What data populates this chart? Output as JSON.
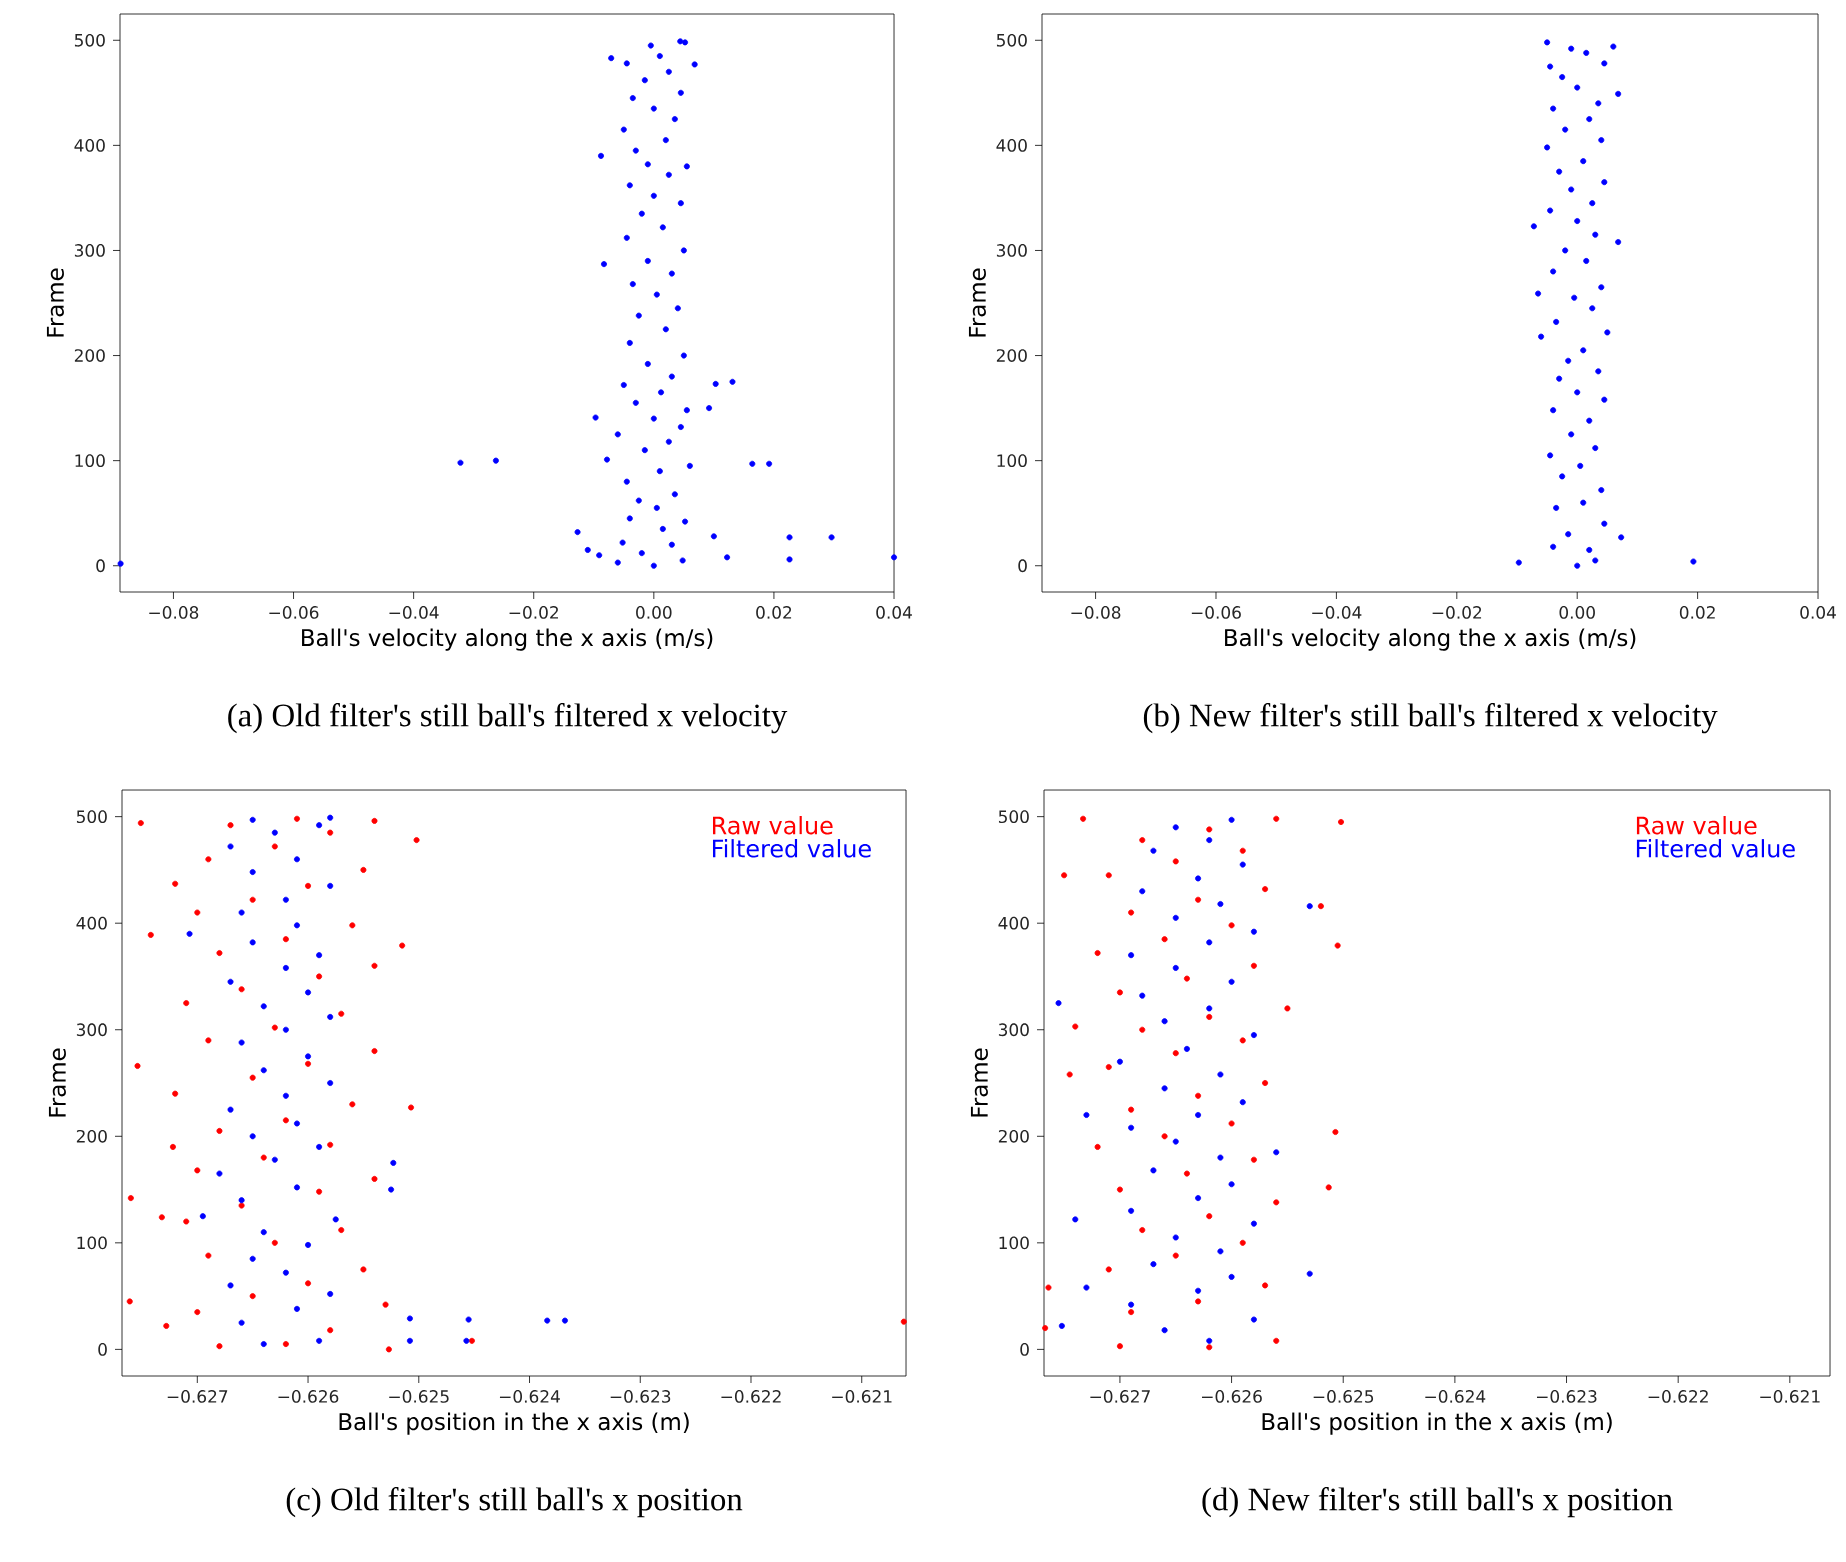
{
  "chart_data": [
    {
      "type": "scatter",
      "xlabel": "Ball's velocity along the x axis (m/s)",
      "ylabel": "Frame",
      "annotations": [
        "(a) Old filter's still ball's filtered x velocity"
      ],
      "marker": "circle",
      "xlim": [
        -0.0889,
        0.04
      ],
      "ylim": [
        -25,
        525
      ],
      "xticks": [
        {
          "value": -0.08,
          "label": "−0.08"
        },
        {
          "value": -0.06,
          "label": "−0.06"
        },
        {
          "value": -0.04,
          "label": "−0.04"
        },
        {
          "value": -0.02,
          "label": "−0.02"
        },
        {
          "value": 0,
          "label": "0.00"
        },
        {
          "value": 0.02,
          "label": "0.02"
        },
        {
          "value": 0.04,
          "label": "0.04"
        }
      ],
      "yticks": [
        0,
        100,
        200,
        300,
        400,
        500
      ],
      "series": [
        {
          "color": "#0000ff",
          "x": [
            -0.0888,
            -0.0322,
            -0.0263,
            0.0164,
            0.0192,
            0.04,
            0.0122,
            0.0226,
            0.0226,
            0.0296,
            0.01,
            0.0131,
            0.0103,
            0.0092,
            -0.0127,
            -0.011,
            -0.0091,
            -0.0088,
            -0.0083,
            -0.0071,
            0.0068,
            0.0044,
            -0.0097,
            -0.0078,
            0.0,
            -0.006,
            0.0048,
            -0.002,
            0.003,
            -0.0052,
            0.0015,
            -0.004,
            0.0052,
            0.0005,
            -0.0025,
            0.0035,
            -0.0045,
            0.001,
            0.006,
            -0.0015,
            0.0025,
            -0.006,
            0.0045,
            0.0,
            -0.003,
            0.0055,
            0.0012,
            -0.005,
            0.003,
            -0.001,
            0.005,
            -0.004,
            0.002,
            -0.0025,
            0.004,
            0.0005,
            -0.0035,
            0.003,
            -0.001,
            0.005,
            -0.0045,
            0.0015,
            -0.002,
            0.0045,
            0.0,
            -0.004,
            0.0025,
            -0.001,
            0.0055,
            -0.003,
            0.002,
            -0.005,
            0.0035,
            0.0,
            -0.0035,
            0.0045,
            -0.0015,
            0.0025,
            -0.0045,
            0.001,
            -0.0005,
            0.0052
          ],
          "values": [
            2,
            98,
            100,
            97,
            97,
            8,
            8,
            6,
            27,
            27,
            28,
            175,
            173,
            150,
            32,
            15,
            10,
            390,
            287,
            483,
            477,
            499,
            141,
            101,
            0,
            3,
            5,
            12,
            20,
            22,
            35,
            45,
            42,
            55,
            62,
            68,
            80,
            90,
            95,
            110,
            118,
            125,
            132,
            140,
            155,
            148,
            165,
            172,
            180,
            192,
            200,
            212,
            225,
            238,
            245,
            258,
            268,
            278,
            290,
            300,
            312,
            322,
            335,
            345,
            352,
            362,
            372,
            382,
            380,
            395,
            405,
            415,
            425,
            435,
            445,
            450,
            462,
            470,
            478,
            485,
            495,
            498
          ]
        }
      ]
    },
    {
      "type": "scatter",
      "xlabel": "Ball's velocity along the x axis (m/s)",
      "ylabel": "Frame",
      "annotations": [
        "(b) New filter's still ball's filtered x velocity"
      ],
      "marker": "circle",
      "xlim": [
        -0.0889,
        0.04
      ],
      "ylim": [
        -25,
        525
      ],
      "xticks": [
        {
          "value": -0.08,
          "label": "−0.08"
        },
        {
          "value": -0.06,
          "label": "−0.06"
        },
        {
          "value": -0.04,
          "label": "−0.04"
        },
        {
          "value": -0.02,
          "label": "−0.02"
        },
        {
          "value": 0,
          "label": "0.00"
        },
        {
          "value": 0.02,
          "label": "0.02"
        },
        {
          "value": 0.04,
          "label": "0.04"
        }
      ],
      "yticks": [
        0,
        100,
        200,
        300,
        400,
        500
      ],
      "series": [
        {
          "color": "#0000ff",
          "x": [
            -0.0097,
            0.0193,
            0.0073,
            0.0068,
            -0.0072,
            -0.0065,
            0.0068,
            -0.005,
            -0.006,
            0.0,
            0.003,
            -0.004,
            0.002,
            -0.0015,
            0.0045,
            -0.0035,
            0.001,
            0.004,
            -0.0025,
            0.0005,
            -0.0045,
            0.003,
            -0.001,
            0.002,
            -0.004,
            0.0045,
            0.0,
            -0.003,
            0.0035,
            -0.0015,
            0.001,
            0.005,
            -0.0035,
            0.0025,
            -0.0005,
            0.004,
            -0.004,
            0.0015,
            -0.002,
            0.003,
            0.0,
            -0.0045,
            0.0025,
            -0.001,
            0.0045,
            -0.003,
            0.001,
            -0.005,
            0.004,
            -0.002,
            0.002,
            -0.004,
            0.0035,
            0.0,
            -0.0025,
            0.0045,
            -0.0045,
            0.0015,
            -0.001,
            0.006
          ],
          "values": [
            3,
            4,
            27,
            449,
            323,
            259,
            308,
            498,
            218,
            0,
            5,
            18,
            15,
            30,
            40,
            55,
            60,
            72,
            85,
            95,
            105,
            112,
            125,
            138,
            148,
            158,
            165,
            178,
            185,
            195,
            205,
            222,
            232,
            245,
            255,
            265,
            280,
            290,
            300,
            315,
            328,
            338,
            345,
            358,
            365,
            375,
            385,
            398,
            405,
            415,
            425,
            435,
            440,
            455,
            465,
            478,
            475,
            488,
            492,
            494
          ]
        }
      ]
    },
    {
      "type": "scatter",
      "xlabel": "Ball's position in the x axis (m)",
      "ylabel": "Frame",
      "annotations": [
        "(c) Old filter's still ball's x position"
      ],
      "marker": "circle",
      "legend": "top right",
      "xlim": [
        -0.62768,
        -0.6206
      ],
      "ylim": [
        -25,
        525
      ],
      "xticks": [
        {
          "value": -0.627,
          "label": "−0.627"
        },
        {
          "value": -0.626,
          "label": "−0.626"
        },
        {
          "value": -0.625,
          "label": "−0.625"
        },
        {
          "value": -0.624,
          "label": "−0.624"
        },
        {
          "value": -0.623,
          "label": "−0.623"
        },
        {
          "value": -0.622,
          "label": "−0.622"
        },
        {
          "value": -0.621,
          "label": "−0.621"
        }
      ],
      "yticks": [
        0,
        100,
        200,
        300,
        400,
        500
      ],
      "series": [
        {
          "name": "Raw value",
          "color": "#ff0000",
          "x": [
            -0.62761,
            -0.62754,
            -0.62751,
            -0.6276,
            -0.62062,
            -0.62452,
            -0.62527,
            -0.62502,
            -0.62515,
            -0.62507,
            -0.6253,
            -0.62742,
            -0.62728,
            -0.62732,
            -0.62722,
            -0.6272,
            -0.6268,
            -0.6262,
            -0.6258,
            -0.627,
            -0.6265,
            -0.626,
            -0.6255,
            -0.6269,
            -0.6263,
            -0.6257,
            -0.6271,
            -0.6266,
            -0.6259,
            -0.6254,
            -0.627,
            -0.6264,
            -0.6258,
            -0.6268,
            -0.6262,
            -0.6256,
            -0.6272,
            -0.6265,
            -0.626,
            -0.6254,
            -0.6269,
            -0.6263,
            -0.6257,
            -0.6271,
            -0.6266,
            -0.6259,
            -0.6254,
            -0.6268,
            -0.6262,
            -0.6256,
            -0.627,
            -0.6265,
            -0.626,
            -0.6255,
            -0.6269,
            -0.6263,
            -0.6258,
            -0.6267,
            -0.6261,
            -0.6254
          ],
          "values": [
            45,
            266,
            494,
            142,
            26,
            8,
            0,
            478,
            379,
            227,
            42,
            389,
            22,
            124,
            190,
            437,
            3,
            5,
            18,
            35,
            50,
            62,
            75,
            88,
            100,
            112,
            120,
            135,
            148,
            160,
            168,
            180,
            192,
            205,
            215,
            230,
            240,
            255,
            268,
            280,
            290,
            302,
            315,
            325,
            338,
            350,
            360,
            372,
            385,
            398,
            410,
            422,
            435,
            450,
            460,
            472,
            485,
            492,
            498,
            496
          ]
        },
        {
          "name": "Filtered value",
          "color": "#0000ff",
          "x": [
            -0.62455,
            -0.62384,
            -0.62368,
            -0.62457,
            -0.62508,
            -0.62508,
            -0.62523,
            -0.62707,
            -0.62525,
            -0.62695,
            -0.6264,
            -0.6259,
            -0.6266,
            -0.6261,
            -0.6258,
            -0.6267,
            -0.6262,
            -0.6265,
            -0.626,
            -0.6264,
            -0.62575,
            -0.6266,
            -0.6261,
            -0.6268,
            -0.6263,
            -0.6259,
            -0.6265,
            -0.6261,
            -0.6267,
            -0.6262,
            -0.6258,
            -0.6264,
            -0.626,
            -0.6266,
            -0.6262,
            -0.6258,
            -0.6264,
            -0.626,
            -0.6267,
            -0.6262,
            -0.6259,
            -0.6265,
            -0.6261,
            -0.6266,
            -0.6262,
            -0.6258,
            -0.6265,
            -0.6261,
            -0.6267,
            -0.6263,
            -0.6259,
            -0.6265,
            -0.6258
          ],
          "values": [
            28,
            27,
            27,
            8,
            29,
            8,
            175,
            390,
            150,
            125,
            5,
            8,
            25,
            38,
            52,
            60,
            72,
            85,
            98,
            110,
            122,
            140,
            152,
            165,
            178,
            190,
            200,
            212,
            225,
            238,
            250,
            262,
            275,
            288,
            300,
            312,
            322,
            335,
            345,
            358,
            370,
            382,
            398,
            410,
            422,
            435,
            448,
            460,
            472,
            485,
            492,
            497,
            499
          ]
        }
      ]
    },
    {
      "type": "scatter",
      "xlabel": "Ball's position in the x axis (m)",
      "ylabel": "Frame",
      "annotations": [
        "(d) New filter's still ball's x position"
      ],
      "marker": "circle",
      "legend": "top right",
      "xlim": [
        -0.62768,
        -0.62064
      ],
      "ylim": [
        -25,
        525
      ],
      "xticks": [
        {
          "value": -0.627,
          "label": "−0.627"
        },
        {
          "value": -0.626,
          "label": "−0.626"
        },
        {
          "value": -0.625,
          "label": "−0.625"
        },
        {
          "value": -0.624,
          "label": "−0.624"
        },
        {
          "value": -0.623,
          "label": "−0.623"
        },
        {
          "value": -0.622,
          "label": "−0.622"
        },
        {
          "value": -0.621,
          "label": "−0.621"
        }
      ],
      "yticks": [
        0,
        100,
        200,
        300,
        400,
        500
      ],
      "series": [
        {
          "name": "Raw value",
          "color": "#ff0000",
          "x": [
            -0.62764,
            -0.62767,
            -0.62502,
            -0.62505,
            -0.62507,
            -0.62513,
            -0.6252,
            -0.62733,
            -0.6275,
            -0.6274,
            -0.62745,
            -0.627,
            -0.6262,
            -0.6256,
            -0.6269,
            -0.6263,
            -0.6257,
            -0.6271,
            -0.6265,
            -0.6259,
            -0.6268,
            -0.6262,
            -0.6256,
            -0.627,
            -0.6264,
            -0.6258,
            -0.6272,
            -0.6266,
            -0.626,
            -0.6269,
            -0.6263,
            -0.6257,
            -0.6271,
            -0.6265,
            -0.6259,
            -0.6268,
            -0.6262,
            -0.6255,
            -0.627,
            -0.6264,
            -0.6258,
            -0.6272,
            -0.6266,
            -0.626,
            -0.6269,
            -0.6263,
            -0.6257,
            -0.6271,
            -0.6265,
            -0.6259,
            -0.6268,
            -0.6262,
            -0.6256
          ],
          "values": [
            58,
            20,
            495,
            379,
            204,
            152,
            416,
            498,
            445,
            303,
            258,
            3,
            2,
            8,
            35,
            45,
            60,
            75,
            88,
            100,
            112,
            125,
            138,
            150,
            165,
            178,
            190,
            200,
            212,
            225,
            238,
            250,
            265,
            278,
            290,
            300,
            312,
            320,
            335,
            348,
            360,
            372,
            385,
            398,
            410,
            422,
            432,
            445,
            458,
            468,
            478,
            488,
            498
          ]
        },
        {
          "name": "Filtered value",
          "color": "#0000ff",
          "x": [
            -0.62755,
            -0.6273,
            -0.6253,
            -0.6253,
            -0.62752,
            -0.6274,
            -0.6273,
            -0.6262,
            -0.6266,
            -0.6258,
            -0.6269,
            -0.6263,
            -0.626,
            -0.6267,
            -0.6261,
            -0.6265,
            -0.6258,
            -0.6269,
            -0.6263,
            -0.626,
            -0.6267,
            -0.6261,
            -0.6256,
            -0.6265,
            -0.6269,
            -0.6263,
            -0.6259,
            -0.6266,
            -0.6261,
            -0.627,
            -0.6264,
            -0.6258,
            -0.6266,
            -0.6262,
            -0.6268,
            -0.626,
            -0.6265,
            -0.6269,
            -0.6262,
            -0.6258,
            -0.6265,
            -0.6261,
            -0.6268,
            -0.6263,
            -0.6259,
            -0.6267,
            -0.6262,
            -0.6265,
            -0.626
          ],
          "values": [
            325,
            58,
            416,
            71,
            22,
            122,
            220,
            8,
            18,
            28,
            42,
            55,
            68,
            80,
            92,
            105,
            118,
            130,
            142,
            155,
            168,
            180,
            185,
            195,
            208,
            220,
            232,
            245,
            258,
            270,
            282,
            295,
            308,
            320,
            332,
            345,
            358,
            370,
            382,
            392,
            405,
            418,
            430,
            442,
            455,
            468,
            478,
            490,
            497
          ]
        }
      ]
    }
  ]
}
